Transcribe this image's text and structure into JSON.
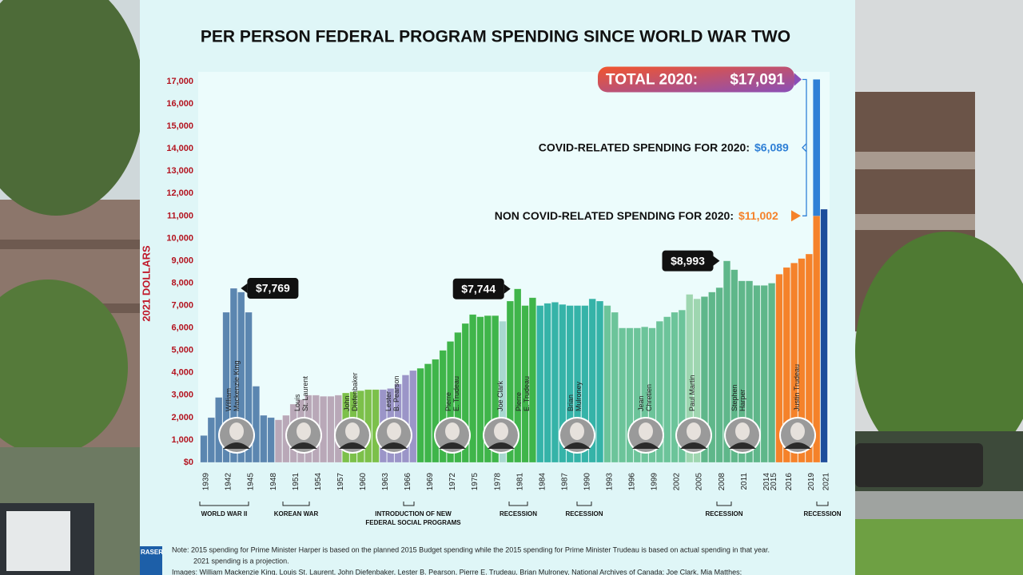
{
  "chart_data": {
    "type": "bar",
    "title": "PER PERSON FEDERAL PROGRAM SPENDING SINCE WORLD WAR TWO",
    "y_label": "2021 DOLLARS",
    "categories": [
      "1939",
      null,
      null,
      "1942",
      null,
      null,
      "1945",
      null,
      null,
      "1948",
      null,
      null,
      "1951",
      null,
      null,
      "1954",
      null,
      null,
      "1957",
      null,
      null,
      "1960",
      null,
      null,
      "1963",
      null,
      null,
      "1966",
      null,
      null,
      "1969",
      null,
      null,
      "1972",
      null,
      null,
      "1975",
      null,
      null,
      "1978",
      null,
      null,
      "1981",
      null,
      null,
      "1984",
      null,
      null,
      "1987",
      null,
      null,
      "1990",
      null,
      null,
      "1993",
      null,
      null,
      "1996",
      null,
      null,
      "1999",
      null,
      null,
      "2002",
      null,
      null,
      "2005",
      null,
      null,
      "2008",
      null,
      null,
      "2011",
      null,
      null,
      "2014",
      "2015",
      null,
      "2016",
      null,
      null,
      "2019",
      null,
      "2021"
    ],
    "values": [
      1200,
      2000,
      2900,
      6700,
      7769,
      7600,
      6700,
      3400,
      2100,
      2000,
      1900,
      2100,
      2600,
      2800,
      3000,
      3000,
      2950,
      2950,
      3000,
      3100,
      3150,
      3200,
      3250,
      3250,
      3250,
      3300,
      3500,
      3900,
      4100,
      4200,
      4400,
      4600,
      5000,
      5400,
      5800,
      6200,
      6600,
      6500,
      6550,
      6550,
      6300,
      7200,
      7744,
      7000,
      7350,
      7000,
      7100,
      7150,
      7050,
      7000,
      7000,
      7000,
      7300,
      7200,
      7000,
      6700,
      6000,
      6000,
      6000,
      6050,
      6000,
      6300,
      6500,
      6700,
      6800,
      7500,
      7300,
      7400,
      7600,
      7800,
      8993,
      8600,
      8100,
      8100,
      7900,
      7900,
      8000,
      8400,
      8700,
      8900,
      9100,
      9300,
      11002,
      11300
    ],
    "value_labels": [
      null,
      null,
      null,
      null,
      "$7,769",
      null,
      null,
      null,
      null,
      null,
      null,
      null,
      null,
      null,
      null,
      null,
      null,
      null,
      null,
      null,
      null,
      null,
      null,
      null,
      null,
      null,
      null,
      null,
      null,
      null,
      null,
      null,
      null,
      null,
      null,
      null,
      null,
      null,
      null,
      null,
      null,
      null,
      "$7,744",
      null,
      null,
      null,
      null,
      null,
      null,
      null,
      null,
      null,
      null,
      null,
      null,
      null,
      null,
      null,
      null,
      null,
      null,
      null,
      null,
      null,
      null,
      null,
      null,
      null,
      null,
      null,
      "$8,993",
      null,
      null,
      null,
      null,
      null,
      null,
      null,
      null,
      null,
      null,
      null,
      null,
      null
    ],
    "bar_colors": [
      "#5b86b0",
      "#5b86b0",
      "#5b86b0",
      "#5b86b0",
      "#5b86b0",
      "#5b86b0",
      "#5b86b0",
      "#5b86b0",
      "#5b86b0",
      "#5b86b0",
      "#b9a8b8",
      "#b9a8b8",
      "#b9a8b8",
      "#b9a8b8",
      "#b9a8b8",
      "#b9a8b8",
      "#b9a8b8",
      "#b9a8b8",
      "#b9a8b8",
      "#7cc04a",
      "#7cc04a",
      "#7cc04a",
      "#7cc04a",
      "#7cc04a",
      "#9b95c8",
      "#9b95c8",
      "#9b95c8",
      "#9b95c8",
      "#9b95c8",
      "#3fb54a",
      "#3fb54a",
      "#3fb54a",
      "#3fb54a",
      "#3fb54a",
      "#3fb54a",
      "#3fb54a",
      "#3fb54a",
      "#3fb54a",
      "#3fb54a",
      "#3fb54a",
      "#a8d8d0",
      "#3fb54a",
      "#3fb54a",
      "#3fb54a",
      "#3fb54a",
      "#35b3a8",
      "#35b3a8",
      "#35b3a8",
      "#35b3a8",
      "#35b3a8",
      "#35b3a8",
      "#35b3a8",
      "#35b3a8",
      "#35b3a8",
      "#6cc49a",
      "#6cc49a",
      "#6cc49a",
      "#6cc49a",
      "#6cc49a",
      "#6cc49a",
      "#6cc49a",
      "#6cc49a",
      "#6cc49a",
      "#6cc49a",
      "#6cc49a",
      "#9ed6b0",
      "#9ed6b0",
      "#5fb78a",
      "#5fb78a",
      "#5fb78a",
      "#5fb78a",
      "#5fb78a",
      "#5fb78a",
      "#5fb78a",
      "#5fb78a",
      "#5fb78a",
      "#5fb78a",
      "#f5822a",
      "#f5822a",
      "#f5822a",
      "#f5822a",
      "#f5822a",
      "#f5822a",
      "#1f4e9c"
    ],
    "stack": {
      "values": [
        null,
        null,
        null,
        null,
        null,
        null,
        null,
        null,
        null,
        null,
        null,
        null,
        null,
        null,
        null,
        null,
        null,
        null,
        null,
        null,
        null,
        null,
        null,
        null,
        null,
        null,
        null,
        null,
        null,
        null,
        null,
        null,
        null,
        null,
        null,
        null,
        null,
        null,
        null,
        null,
        null,
        null,
        null,
        null,
        null,
        null,
        null,
        null,
        null,
        null,
        null,
        null,
        null,
        null,
        null,
        null,
        null,
        null,
        null,
        null,
        null,
        null,
        null,
        null,
        null,
        null,
        null,
        null,
        null,
        null,
        null,
        null,
        null,
        null,
        null,
        null,
        null,
        null,
        null,
        null,
        null,
        null,
        6089,
        null
      ],
      "color": "#2f80d6"
    },
    "total": {
      "label": "TOTAL 2020:",
      "value": 17091,
      "value_label": "$17,091"
    },
    "covid_note": {
      "label": "COVID-RELATED SPENDING FOR 2020:",
      "value_label": "$6,089"
    },
    "non_covid_note": {
      "label": "NON COVID-RELATED SPENDING FOR 2020:",
      "value_label": "$11,002"
    },
    "ylim": [
      0,
      17400
    ],
    "yticks": [
      {
        "value": 0,
        "label": "$0"
      },
      {
        "value": 1000,
        "label": "1,000"
      },
      {
        "value": 2000,
        "label": "2,000"
      },
      {
        "value": 3000,
        "label": "3,000"
      },
      {
        "value": 4000,
        "label": "4,000"
      },
      {
        "value": 5000,
        "label": "5,000"
      },
      {
        "value": 6000,
        "label": "6,000"
      },
      {
        "value": 7000,
        "label": "7,000"
      },
      {
        "value": 8000,
        "label": "8,000"
      },
      {
        "value": 9000,
        "label": "9,000"
      },
      {
        "value": 10000,
        "label": "10,000"
      },
      {
        "value": 11000,
        "label": "11,000"
      },
      {
        "value": 12000,
        "label": "12,000"
      },
      {
        "value": 13000,
        "label": "13,000"
      },
      {
        "value": 14000,
        "label": "14,000"
      },
      {
        "value": 15000,
        "label": "15,000"
      },
      {
        "value": 16000,
        "label": "16,000"
      },
      {
        "value": 17000,
        "label": "17,000"
      }
    ],
    "grid": false
  },
  "leaders": [
    [
      "William",
      "Mackenzie King"
    ],
    [
      "Louis",
      "St. Laurent"
    ],
    [
      "John",
      "Diefenbaker"
    ],
    [
      "Lester",
      "B. Pearson"
    ],
    [
      "Pierre",
      "E. Trudeau"
    ],
    [
      "Joe Clark"
    ],
    [
      "Pierre",
      "E. Trudeau"
    ],
    [
      "Brian",
      "Mulroney"
    ],
    [
      "Jean",
      "Chretien"
    ],
    [
      "Paul Martin"
    ],
    [
      "Stephen",
      "Harper"
    ],
    [
      "Justin Trudeau"
    ]
  ],
  "events": [
    [
      "WORLD WAR II"
    ],
    [
      "KOREAN WAR"
    ],
    [
      "INTRODUCTION OF NEW",
      "FEDERAL SOCIAL PROGRAMS"
    ],
    [
      "RECESSION"
    ],
    [
      "RECESSION"
    ],
    [
      "RECESSION"
    ],
    [
      "RECESSION"
    ]
  ],
  "notes": [
    "Note: 2015 spending for Prime Minister Harper is based on the planned 2015 Budget spending while the 2015 spending for Prime Minister Trudeau is based on actual spending in that year.",
    "2021 spending is a projection.",
    "Images: William Mackenzie King, Louis St. Laurent, John Diefenbaker, Lester B. Pearson, Pierre E. Trudeau, Brian Mulroney, National Archives of Canada; Joe Clark, Mia Matthes;"
  ],
  "logo": "RASER"
}
